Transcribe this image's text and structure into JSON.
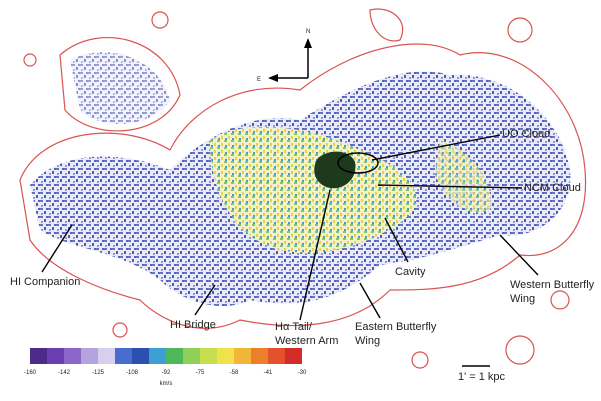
{
  "compass": {
    "north": "N",
    "east": "E"
  },
  "labels": [
    {
      "lines": [
        "UO Cloud"
      ]
    },
    {
      "lines": [
        "NCM Cloud"
      ]
    },
    {
      "lines": [
        "Cavity"
      ]
    },
    {
      "lines": [
        "Western Butterfly",
        "Wing"
      ]
    },
    {
      "lines": [
        "Eastern Butterfly",
        "Wing"
      ]
    },
    {
      "lines": [
        "Hα Tail/",
        "Western Arm"
      ]
    },
    {
      "lines": [
        "HI Bridge"
      ]
    },
    {
      "lines": [
        "HI Companion"
      ]
    }
  ],
  "scale_bar": "1' = 1 kpc",
  "colorbar": {
    "ticks": [
      "-160",
      "-142",
      "-125",
      "-108",
      "-92",
      "-75",
      "-58",
      "-41",
      "-30"
    ],
    "unit": "km/s"
  }
}
